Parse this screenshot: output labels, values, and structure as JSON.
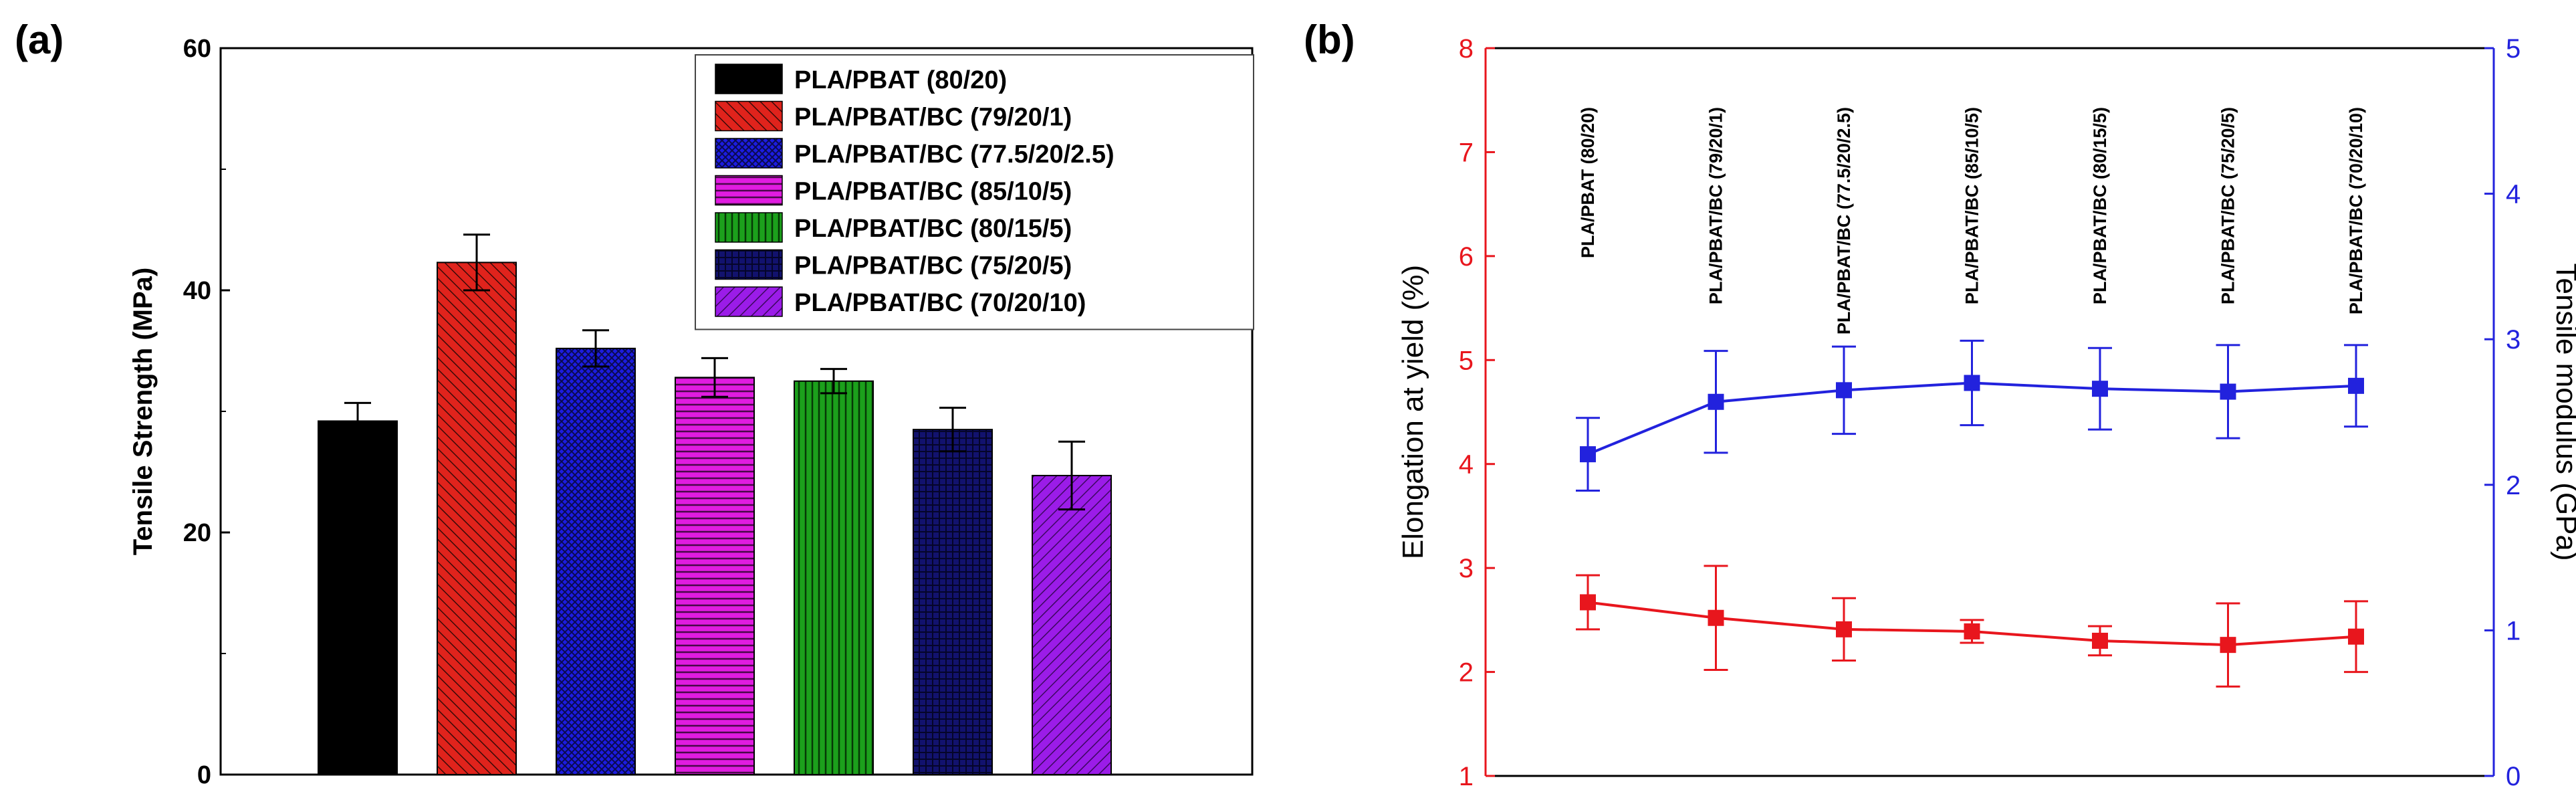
{
  "chart_data": [
    {
      "panel": "(a)",
      "type": "bar",
      "title": "",
      "xlabel": "",
      "ylabel": "Tensile Strength (MPa)",
      "ylim": [
        0,
        60
      ],
      "yticks": [
        "0",
        "20",
        "40",
        "60"
      ],
      "categories": [
        "PLA/PBAT (80/20)",
        "PLA/PBAT/BC (79/20/1)",
        "PLA/PBAT/BC (77.5/20/2.5)",
        "PLA/PBAT/BC (85/10/5)",
        "PLA/PBAT/BC (80/15/5)",
        "PLA/PBAT/BC (75/20/5)",
        "PLA/PBAT/BC (70/20/10)"
      ],
      "values": [
        29.2,
        42.3,
        35.2,
        32.8,
        32.5,
        28.5,
        24.7
      ],
      "errors": [
        1.5,
        2.3,
        1.5,
        1.6,
        1.0,
        1.8,
        2.8
      ],
      "colors": [
        "#000000",
        "#e0231c",
        "#1c1ce0",
        "#e01ce0",
        "#1ca01c",
        "#12126e",
        "#9b1ce8"
      ],
      "legend": [
        "PLA/PBAT (80/20)",
        "PLA/PBAT/BC (79/20/1)",
        "PLA/PBAT/BC (77.5/20/2.5)",
        "PLA/PBAT/BC (85/10/5)",
        "PLA/PBAT/BC (80/15/5)",
        "PLA/PBAT/BC (75/20/5)",
        "PLA/PBAT/BC (70/20/10)"
      ],
      "legend_position": "top-right"
    },
    {
      "panel": "(b)",
      "type": "line",
      "title": "",
      "xlabel": "",
      "categories": [
        "PLA/PBAT (80/20)",
        "PLA/PBAT/BC (79/20/1)",
        "PLA/PBAT/BC (77.5/20/2.5)",
        "PLA/PBAT/BC (85/10/5)",
        "PLA/PBAT/BC (80/15/5)",
        "PLA/PBAT/BC (75/20/5)",
        "PLA/PBAT/BC (70/20/10)"
      ],
      "left_axis": {
        "label": "Elongation at yield (%)",
        "ylim": [
          1,
          8
        ],
        "ticks": [
          "1",
          "2",
          "3",
          "4",
          "5",
          "6",
          "7",
          "8"
        ],
        "color": "#e8161d"
      },
      "right_axis": {
        "label": "Tensile modulus (GPa)",
        "ylim": [
          0,
          5
        ],
        "ticks": [
          "0",
          "1",
          "2",
          "3",
          "4",
          "5"
        ],
        "color": "#2222dd"
      },
      "series": [
        {
          "name": "Elongation at yield (%)",
          "axis": "left",
          "color": "#e8161d",
          "values": [
            2.67,
            2.52,
            2.41,
            2.39,
            2.3,
            2.26,
            2.34
          ],
          "errors": [
            0.26,
            0.5,
            0.3,
            0.11,
            0.14,
            0.4,
            0.34
          ]
        },
        {
          "name": "Tensile modulus (GPa)",
          "axis": "right",
          "color": "#2222dd",
          "values": [
            2.21,
            2.57,
            2.65,
            2.7,
            2.66,
            2.64,
            2.68
          ],
          "errors": [
            0.25,
            0.35,
            0.3,
            0.29,
            0.28,
            0.32,
            0.28
          ]
        }
      ]
    }
  ]
}
